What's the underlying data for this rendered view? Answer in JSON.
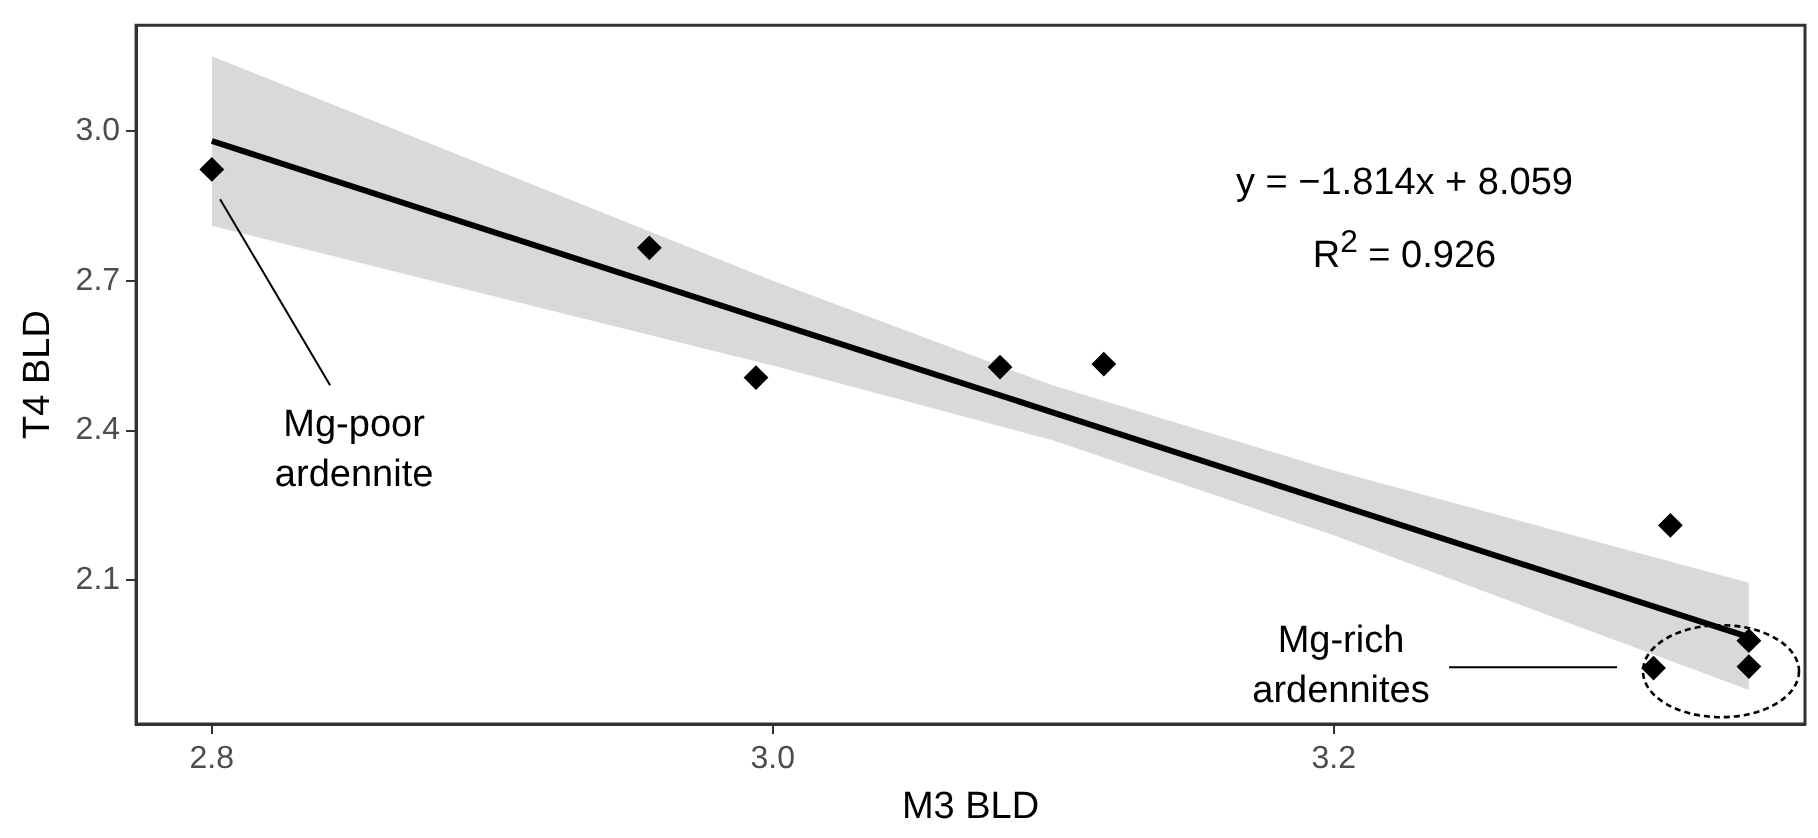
{
  "chart_data": {
    "type": "scatter",
    "xlabel": "M3 BLD",
    "ylabel": "T4 BLD",
    "xlim": [
      2.773,
      3.368
    ],
    "ylim": [
      1.812,
      3.212
    ],
    "xticks": [
      2.8,
      {
        "value": 3,
        "label": "3.0"
      },
      3.2
    ],
    "yticks": [
      {
        "value": 3,
        "label": "3.0"
      },
      2.7,
      2.4,
      2.1
    ],
    "grid": false,
    "legend": false,
    "series": [
      {
        "type": "line",
        "color": "#000000",
        "x": [
          2.8,
          3.0,
          3.1,
          3.2,
          3.348
        ],
        "values": [
          2.98,
          2.617,
          2.436,
          2.254,
          1.986
        ],
        "lower": [
          2.81,
          2.53,
          2.38,
          2.19,
          1.88
        ],
        "upper": [
          3.15,
          2.7,
          2.49,
          2.32,
          2.095
        ],
        "line_style": "solid",
        "marker": "none"
      },
      {
        "color": "#000000",
        "marker": "diamond",
        "x": [
          2.8,
          2.956,
          2.994,
          3.081,
          3.118,
          3.32,
          3.314,
          3.348,
          3.348
        ],
        "values": [
          2.923,
          2.766,
          2.506,
          2.527,
          2.533,
          2.21,
          1.924,
          1.979,
          1.927
        ]
      }
    ],
    "annotations": [
      "y = −1.814x + 8.059",
      "R$^{2}$ = 0.926",
      "Mg-poor ardennite",
      "Mg-rich ardennites"
    ]
  }
}
